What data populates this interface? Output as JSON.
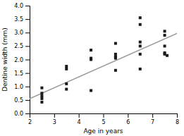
{
  "chart_data": {
    "type": "scatter",
    "xlabel": "Age in years",
    "ylabel": "Dentine width (mm)",
    "xlim": [
      2.0,
      8.0
    ],
    "ylim": [
      0.0,
      4.0
    ],
    "xticks": [
      2,
      3,
      4,
      5,
      6,
      7,
      8
    ],
    "yticks": [
      {
        "value": 0.0,
        "label": "0.0"
      },
      0.5,
      {
        "value": 1.0,
        "label": "1.0"
      },
      1.5,
      {
        "value": 2.0,
        "label": "2.0"
      },
      2.5,
      {
        "value": 3.0,
        "label": "3.0"
      },
      3.5,
      {
        "value": 4.0,
        "label": "4.0"
      }
    ],
    "grid": false,
    "series": [
      {
        "type": "line",
        "color": "#999999",
        "line_style": "solid",
        "x": [
          2.0,
          8.0
        ],
        "values": [
          0.55,
          2.97
        ]
      },
      {
        "type": "scatter",
        "color": "#1a1a1a",
        "marker": "square",
        "x": [
          2.5,
          2.5,
          2.5,
          2.5,
          2.5,
          3.5,
          3.5,
          3.5,
          3.5,
          4.5,
          4.5,
          4.5,
          4.5,
          5.5,
          5.5,
          5.5,
          5.5,
          5.5,
          5.5,
          6.5,
          6.5,
          6.5,
          6.5,
          6.5,
          6.5,
          7.5,
          7.5,
          7.5,
          7.5,
          7.5,
          7.6
        ],
        "values": [
          0.95,
          0.75,
          0.65,
          0.55,
          0.42,
          1.75,
          1.65,
          1.1,
          0.9,
          2.35,
          2.05,
          2.0,
          0.85,
          2.6,
          2.2,
          2.1,
          2.1,
          2.05,
          1.6,
          3.55,
          3.3,
          2.65,
          2.5,
          2.2,
          1.65,
          3.05,
          2.9,
          2.5,
          2.25,
          2.2,
          2.15
        ]
      }
    ]
  }
}
